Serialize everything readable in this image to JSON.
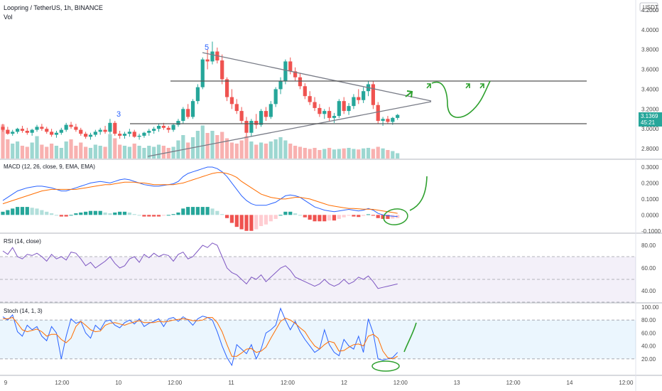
{
  "header": {
    "symbol_title": "Loopring / TetherUS, 1h, BINANCE",
    "vol_label": "Vol",
    "currency_badge": "USDT"
  },
  "price_badge": {
    "price": "3.1369",
    "countdown": "45:21",
    "color": "#26a69a"
  },
  "wave_labels": [
    "3",
    "5"
  ],
  "panes": {
    "macd": {
      "label": "MACD (12, 26, close, 9, EMA, EMA)",
      "ticks": [
        "0.3000",
        "0.2000",
        "0.1000",
        "0.0000",
        "-0.1000"
      ]
    },
    "rsi": {
      "label": "RSI (14, close)",
      "ticks": [
        "80.00",
        "60.00",
        "40.00"
      ]
    },
    "stoch": {
      "label": "Stoch (14, 1, 3)",
      "ticks": [
        "100.00",
        "80.00",
        "60.00",
        "40.00",
        "20.00"
      ]
    }
  },
  "colors": {
    "up": "#26a69a",
    "down": "#ef5350",
    "macd_line": "#2962ff",
    "signal_line": "#ff6d00",
    "rsi_line": "#7e57c2",
    "drawing": "#2ea02e",
    "trendline": "#787b86"
  },
  "chart_data": [
    {
      "type": "candlestick",
      "name": "price",
      "ylim": [
        2.7,
        4.3
      ],
      "y_ticks": [
        "4.2000",
        "4.0000",
        "3.8000",
        "3.6000",
        "3.4000",
        "3.2000",
        "3.0000",
        "2.8000"
      ],
      "x_ticks": [
        "9",
        "12:00",
        "10",
        "12:00",
        "11",
        "12:00",
        "12",
        "12:00",
        "13",
        "12:00",
        "14",
        "12:00"
      ],
      "ohlc": [
        [
          3.02,
          3.05,
          2.97,
          2.99
        ],
        [
          2.99,
          3.02,
          2.94,
          2.95
        ],
        [
          2.95,
          2.99,
          2.93,
          2.97
        ],
        [
          2.97,
          3.01,
          2.95,
          3.0
        ],
        [
          3.0,
          3.03,
          2.96,
          2.98
        ],
        [
          2.98,
          3.01,
          2.94,
          2.96
        ],
        [
          2.96,
          3.0,
          2.93,
          2.99
        ],
        [
          2.99,
          3.04,
          2.97,
          3.02
        ],
        [
          3.02,
          3.05,
          2.98,
          3.0
        ],
        [
          3.0,
          3.02,
          2.95,
          2.97
        ],
        [
          2.97,
          3.0,
          2.92,
          2.94
        ],
        [
          2.94,
          2.98,
          2.91,
          2.96
        ],
        [
          2.96,
          3.01,
          2.94,
          2.99
        ],
        [
          2.99,
          3.06,
          2.97,
          3.04
        ],
        [
          3.04,
          3.07,
          3.0,
          3.02
        ],
        [
          3.02,
          3.05,
          2.97,
          2.99
        ],
        [
          2.99,
          3.01,
          2.93,
          2.95
        ],
        [
          2.95,
          2.97,
          2.9,
          2.92
        ],
        [
          2.92,
          2.96,
          2.89,
          2.94
        ],
        [
          2.94,
          2.99,
          2.92,
          2.97
        ],
        [
          2.97,
          3.01,
          2.94,
          2.99
        ],
        [
          2.99,
          3.03,
          2.95,
          2.97
        ],
        [
          2.97,
          3.1,
          2.95,
          3.06
        ],
        [
          3.06,
          3.08,
          2.93,
          2.95
        ],
        [
          2.95,
          2.98,
          2.9,
          2.93
        ],
        [
          2.93,
          2.97,
          2.9,
          2.95
        ],
        [
          2.95,
          3.0,
          2.92,
          2.97
        ],
        [
          2.97,
          2.99,
          2.91,
          2.92
        ],
        [
          2.92,
          2.95,
          2.89,
          2.93
        ],
        [
          2.93,
          2.97,
          2.91,
          2.96
        ],
        [
          2.96,
          3.0,
          2.93,
          2.98
        ],
        [
          2.98,
          3.02,
          2.95,
          3.0
        ],
        [
          3.0,
          3.05,
          2.97,
          3.03
        ],
        [
          3.03,
          3.06,
          2.99,
          3.01
        ],
        [
          3.01,
          3.03,
          2.96,
          2.99
        ],
        [
          2.99,
          3.05,
          2.97,
          3.04
        ],
        [
          3.04,
          3.1,
          3.02,
          3.08
        ],
        [
          3.08,
          3.22,
          3.05,
          3.2
        ],
        [
          3.2,
          3.25,
          3.1,
          3.12
        ],
        [
          3.12,
          3.3,
          3.1,
          3.28
        ],
        [
          3.28,
          3.45,
          3.25,
          3.42
        ],
        [
          3.42,
          3.72,
          3.4,
          3.7
        ],
        [
          3.7,
          3.8,
          3.6,
          3.68
        ],
        [
          3.68,
          3.88,
          3.65,
          3.78
        ],
        [
          3.78,
          3.82,
          3.66,
          3.69
        ],
        [
          3.69,
          3.75,
          3.45,
          3.5
        ],
        [
          3.5,
          3.52,
          3.28,
          3.32
        ],
        [
          3.32,
          3.4,
          3.2,
          3.25
        ],
        [
          3.25,
          3.3,
          3.15,
          3.18
        ],
        [
          3.18,
          3.22,
          3.05,
          3.08
        ],
        [
          3.08,
          3.12,
          2.92,
          2.96
        ],
        [
          2.96,
          3.1,
          2.92,
          3.08
        ],
        [
          3.08,
          3.15,
          3.0,
          3.04
        ],
        [
          3.04,
          3.2,
          3.02,
          3.18
        ],
        [
          3.18,
          3.22,
          3.08,
          3.12
        ],
        [
          3.12,
          3.28,
          3.1,
          3.25
        ],
        [
          3.25,
          3.42,
          3.22,
          3.4
        ],
        [
          3.4,
          3.52,
          3.35,
          3.48
        ],
        [
          3.48,
          3.7,
          3.45,
          3.68
        ],
        [
          3.68,
          3.72,
          3.55,
          3.58
        ],
        [
          3.58,
          3.62,
          3.48,
          3.52
        ],
        [
          3.52,
          3.56,
          3.4,
          3.43
        ],
        [
          3.43,
          3.46,
          3.3,
          3.33
        ],
        [
          3.33,
          3.38,
          3.24,
          3.27
        ],
        [
          3.27,
          3.32,
          3.18,
          3.21
        ],
        [
          3.21,
          3.25,
          3.12,
          3.15
        ],
        [
          3.15,
          3.2,
          3.1,
          3.18
        ],
        [
          3.18,
          3.22,
          3.08,
          3.11
        ],
        [
          3.11,
          3.16,
          3.06,
          3.13
        ],
        [
          3.13,
          3.3,
          3.11,
          3.28
        ],
        [
          3.28,
          3.32,
          3.15,
          3.18
        ],
        [
          3.18,
          3.26,
          3.14,
          3.23
        ],
        [
          3.23,
          3.35,
          3.2,
          3.32
        ],
        [
          3.32,
          3.4,
          3.25,
          3.29
        ],
        [
          3.29,
          3.42,
          3.26,
          3.38
        ],
        [
          3.38,
          3.48,
          3.33,
          3.45
        ],
        [
          3.45,
          3.48,
          3.2,
          3.24
        ],
        [
          3.24,
          3.27,
          3.05,
          3.08
        ],
        [
          3.08,
          3.12,
          3.03,
          3.1
        ],
        [
          3.1,
          3.13,
          3.05,
          3.07
        ],
        [
          3.07,
          3.12,
          3.04,
          3.11
        ],
        [
          3.11,
          3.15,
          3.09,
          3.14
        ]
      ],
      "volume": [
        320,
        180,
        140,
        160,
        120,
        110,
        150,
        210,
        130,
        110,
        140,
        120,
        100,
        160,
        180,
        120,
        150,
        110,
        100,
        130,
        120,
        110,
        230,
        190,
        130,
        120,
        110,
        140,
        120,
        100,
        120,
        110,
        130,
        120,
        100,
        110,
        170,
        220,
        150,
        200,
        260,
        310,
        240,
        260,
        220,
        250,
        190,
        150,
        140,
        170,
        210,
        160,
        130,
        150,
        140,
        160,
        180,
        200,
        170,
        140,
        120,
        110,
        100,
        90,
        100,
        80,
        90,
        100,
        85,
        90,
        95,
        100,
        90,
        85,
        95,
        100,
        90,
        110,
        95,
        80,
        70,
        50
      ],
      "volume_colors": "matches candle direction"
    },
    {
      "type": "line",
      "name": "macd",
      "ylim": [
        -0.11,
        0.34
      ],
      "series": [
        {
          "values": [
            0.09,
            0.11,
            0.13,
            0.15,
            0.16,
            0.17,
            0.175,
            0.18,
            0.18,
            0.175,
            0.17,
            0.16,
            0.15,
            0.15,
            0.16,
            0.17,
            0.18,
            0.19,
            0.2,
            0.205,
            0.21,
            0.205,
            0.2,
            0.21,
            0.22,
            0.225,
            0.22,
            0.21,
            0.2,
            0.19,
            0.185,
            0.18,
            0.18,
            0.185,
            0.19,
            0.195,
            0.21,
            0.24,
            0.26,
            0.27,
            0.28,
            0.29,
            0.3,
            0.3,
            0.29,
            0.27,
            0.24,
            0.2,
            0.16,
            0.12,
            0.09,
            0.07,
            0.06,
            0.06,
            0.06,
            0.07,
            0.08,
            0.1,
            0.12,
            0.125,
            0.12,
            0.11,
            0.09,
            0.07,
            0.05,
            0.04,
            0.03,
            0.025,
            0.02,
            0.025,
            0.03,
            0.035,
            0.03,
            0.025,
            0.03,
            0.04,
            0.03,
            0.01,
            0.0,
            -0.005,
            -0.008,
            -0.01
          ]
        },
        {
          "values": [
            0.07,
            0.08,
            0.09,
            0.1,
            0.11,
            0.12,
            0.13,
            0.14,
            0.15,
            0.155,
            0.16,
            0.16,
            0.16,
            0.16,
            0.16,
            0.16,
            0.165,
            0.17,
            0.175,
            0.18,
            0.185,
            0.19,
            0.19,
            0.195,
            0.2,
            0.205,
            0.205,
            0.205,
            0.2,
            0.2,
            0.195,
            0.19,
            0.19,
            0.19,
            0.19,
            0.19,
            0.195,
            0.2,
            0.21,
            0.22,
            0.23,
            0.24,
            0.25,
            0.26,
            0.265,
            0.265,
            0.26,
            0.25,
            0.235,
            0.21,
            0.19,
            0.17,
            0.15,
            0.13,
            0.12,
            0.11,
            0.105,
            0.1,
            0.1,
            0.105,
            0.11,
            0.11,
            0.105,
            0.1,
            0.09,
            0.08,
            0.07,
            0.06,
            0.055,
            0.05,
            0.045,
            0.04,
            0.04,
            0.038,
            0.036,
            0.036,
            0.035,
            0.03,
            0.025,
            0.02,
            0.015,
            0.01
          ]
        }
      ],
      "histogram": [
        0.02,
        0.03,
        0.04,
        0.05,
        0.05,
        0.05,
        0.045,
        0.04,
        0.03,
        0.02,
        0.01,
        0.0,
        -0.01,
        -0.01,
        0.0,
        0.01,
        0.015,
        0.02,
        0.025,
        0.025,
        0.025,
        0.015,
        0.01,
        0.015,
        0.02,
        0.02,
        0.015,
        0.005,
        0.0,
        -0.01,
        -0.01,
        -0.01,
        -0.01,
        -0.005,
        0.0,
        0.005,
        0.015,
        0.04,
        0.05,
        0.05,
        0.05,
        0.05,
        0.05,
        0.04,
        0.025,
        0.005,
        -0.02,
        -0.05,
        -0.075,
        -0.09,
        -0.1,
        -0.1,
        -0.09,
        -0.07,
        -0.06,
        -0.04,
        -0.025,
        0.0,
        0.02,
        0.02,
        0.01,
        0.0,
        -0.015,
        -0.03,
        -0.04,
        -0.04,
        -0.04,
        -0.035,
        -0.035,
        -0.025,
        -0.015,
        -0.005,
        -0.01,
        -0.013,
        -0.006,
        0.004,
        -0.005,
        -0.02,
        -0.025,
        -0.025,
        -0.023,
        -0.02
      ]
    },
    {
      "type": "line",
      "name": "rsi",
      "ylim": [
        30,
        90
      ],
      "bands": [
        70,
        50,
        30
      ],
      "values": [
        75,
        72,
        78,
        70,
        68,
        72,
        71,
        73,
        70,
        66,
        72,
        68,
        70,
        67,
        74,
        73,
        68,
        62,
        65,
        60,
        63,
        66,
        70,
        64,
        60,
        62,
        68,
        70,
        65,
        72,
        69,
        73,
        70,
        72,
        71,
        66,
        72,
        74,
        68,
        70,
        75,
        80,
        78,
        82,
        80,
        70,
        60,
        56,
        54,
        50,
        46,
        52,
        50,
        54,
        48,
        52,
        56,
        60,
        62,
        58,
        52,
        50,
        48,
        46,
        44,
        46,
        50,
        46,
        44,
        46,
        50,
        46,
        48,
        52,
        50,
        53,
        48,
        42,
        43,
        44,
        45,
        46
      ]
    },
    {
      "type": "line",
      "name": "stoch",
      "ylim": [
        0,
        100
      ],
      "bands": [
        80,
        20
      ],
      "series": [
        {
          "values": [
            85,
            80,
            88,
            62,
            55,
            72,
            65,
            70,
            55,
            48,
            70,
            60,
            20,
            55,
            82,
            75,
            78,
            60,
            52,
            72,
            65,
            78,
            80,
            72,
            68,
            76,
            80,
            74,
            82,
            70,
            75,
            78,
            82,
            70,
            82,
            84,
            78,
            85,
            80,
            72,
            82,
            86,
            84,
            80,
            62,
            40,
            22,
            10,
            42,
            35,
            28,
            42,
            20,
            35,
            60,
            65,
            72,
            98,
            80,
            65,
            78,
            62,
            50,
            40,
            30,
            35,
            65,
            42,
            30,
            25,
            50,
            40,
            35,
            55,
            30,
            82,
            60,
            20,
            18,
            20,
            22,
            30
          ]
        },
        {
          "values": [
            82,
            82,
            84,
            75,
            65,
            62,
            64,
            66,
            62,
            55,
            58,
            58,
            50,
            45,
            52,
            70,
            78,
            72,
            65,
            62,
            63,
            72,
            75,
            76,
            74,
            72,
            75,
            77,
            79,
            76,
            76,
            76,
            78,
            77,
            78,
            80,
            81,
            82,
            81,
            79,
            79,
            80,
            84,
            84,
            76,
            62,
            42,
            24,
            24,
            29,
            35,
            36,
            30,
            32,
            38,
            52,
            65,
            78,
            83,
            80,
            75,
            68,
            62,
            50,
            40,
            35,
            42,
            47,
            45,
            32,
            33,
            38,
            42,
            43,
            40,
            55,
            58,
            52,
            32,
            22,
            20,
            24
          ]
        }
      ]
    }
  ]
}
